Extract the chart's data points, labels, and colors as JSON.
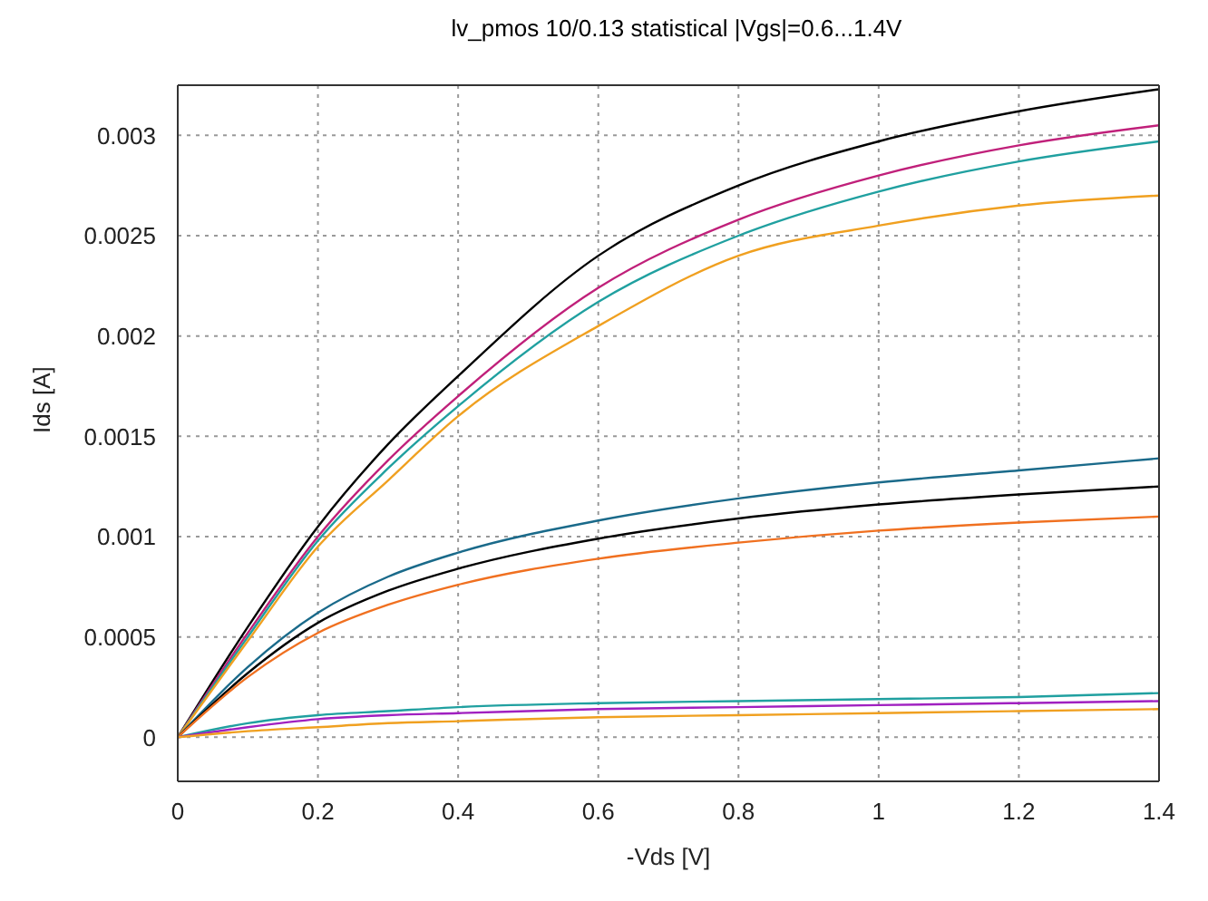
{
  "chart_data": {
    "type": "line",
    "title": "lv_pmos 10/0.13 statistical |Vgs|=0.6...1.4V",
    "xlabel": "-Vds [V]",
    "ylabel": "Ids [A]",
    "x": [
      0,
      0.1,
      0.2,
      0.3,
      0.4,
      0.6,
      0.8,
      1.0,
      1.2,
      1.4
    ],
    "series": [
      {
        "color": "#000000",
        "values": [
          0,
          0.00055,
          0.00105,
          0.00146,
          0.0018,
          0.0024,
          0.00275,
          0.00297,
          0.00312,
          0.00323
        ]
      },
      {
        "color": "#c0207a",
        "values": [
          0,
          0.00052,
          0.001,
          0.00138,
          0.0017,
          0.00224,
          0.00258,
          0.0028,
          0.00295,
          0.00305
        ]
      },
      {
        "color": "#20a0a0",
        "values": [
          0,
          0.0005,
          0.00098,
          0.00134,
          0.00165,
          0.00217,
          0.0025,
          0.00272,
          0.00287,
          0.00297
        ]
      },
      {
        "color": "#f0a020",
        "values": [
          0,
          0.00048,
          0.00095,
          0.00128,
          0.0016,
          0.00205,
          0.0024,
          0.00255,
          0.00265,
          0.0027
        ]
      },
      {
        "color": "#1a6a8a",
        "values": [
          0,
          0.00035,
          0.00062,
          0.0008,
          0.00092,
          0.00108,
          0.00119,
          0.00127,
          0.00133,
          0.00139
        ]
      },
      {
        "color": "#000000",
        "values": [
          0,
          0.00032,
          0.00057,
          0.00073,
          0.00084,
          0.00099,
          0.00109,
          0.00116,
          0.00121,
          0.00125
        ]
      },
      {
        "color": "#f07020",
        "values": [
          0,
          0.0003,
          0.00052,
          0.00066,
          0.00076,
          0.00089,
          0.00097,
          0.00103,
          0.00107,
          0.0011
        ]
      },
      {
        "color": "#20a0a0",
        "values": [
          0,
          7e-05,
          0.00011,
          0.00013,
          0.00015,
          0.00017,
          0.00018,
          0.00019,
          0.0002,
          0.00022
        ]
      },
      {
        "color": "#a020c0",
        "values": [
          0,
          5e-05,
          9e-05,
          0.00011,
          0.00012,
          0.00014,
          0.00015,
          0.00016,
          0.00017,
          0.00018
        ]
      },
      {
        "color": "#f0a020",
        "values": [
          0,
          3e-05,
          5e-05,
          7e-05,
          8e-05,
          0.0001,
          0.00011,
          0.00012,
          0.00013,
          0.00014
        ]
      }
    ],
    "xlim": [
      0,
      1.4
    ],
    "xticks": [
      0,
      0.2,
      0.4,
      0.6,
      0.8,
      1,
      1.2,
      1.4
    ],
    "ylim": [
      -0.00022,
      0.00325
    ],
    "yticks": [
      0,
      0.0005,
      0.001,
      0.0015,
      0.002,
      0.0025,
      0.003
    ],
    "grid": true,
    "legend": false,
    "marker": "none",
    "line_style": "solid"
  }
}
